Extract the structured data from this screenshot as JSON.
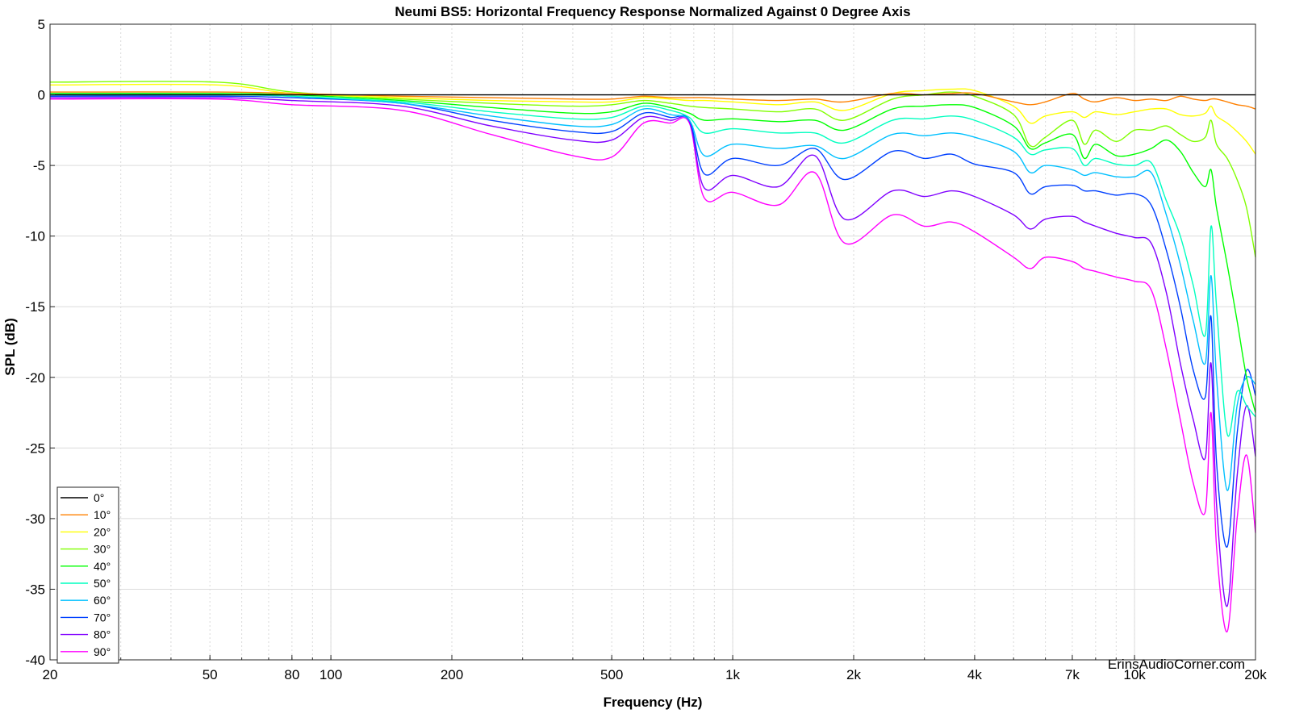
{
  "chart_data": {
    "type": "line",
    "title": "Neumi BS5: Horizontal Frequency Response Normalized Against 0 Degree Axis",
    "xlabel": "Frequency (Hz)",
    "ylabel": "SPL (dB)",
    "xscale": "log",
    "xlim": [
      20,
      20000
    ],
    "ylim": [
      -40,
      5
    ],
    "grid": true,
    "legend_position": "bottom-left",
    "watermark": "ErinsAudioCorner.com",
    "xticks": [
      {
        "value": 20,
        "label": "20"
      },
      {
        "value": 50,
        "label": "50"
      },
      {
        "value": 80,
        "label": "80"
      },
      {
        "value": 100,
        "label": "100"
      },
      {
        "value": 200,
        "label": "200"
      },
      {
        "value": 500,
        "label": "500"
      },
      {
        "value": 1000,
        "label": "1k"
      },
      {
        "value": 2000,
        "label": "2k"
      },
      {
        "value": 4000,
        "label": "4k"
      },
      {
        "value": 7000,
        "label": "7k"
      },
      {
        "value": 10000,
        "label": "10k"
      },
      {
        "value": 20000,
        "label": "20k"
      }
    ],
    "yticks": [
      5,
      0,
      -5,
      -10,
      -15,
      -20,
      -25,
      -30,
      -35,
      -40
    ],
    "x": [
      20,
      52,
      80,
      150,
      250,
      400,
      500,
      600,
      700,
      780,
      850,
      1000,
      1300,
      1600,
      1900,
      2500,
      3000,
      3500,
      4000,
      5000,
      5500,
      6000,
      7000,
      7500,
      8000,
      9000,
      10000,
      11000,
      12000,
      13000,
      14000,
      15000,
      15500,
      16000,
      17000,
      18000,
      19000,
      20000
    ],
    "series": [
      {
        "name": "0°",
        "color": "#000000",
        "values": [
          0,
          0,
          0,
          0,
          0,
          0,
          0,
          0,
          0,
          0,
          0,
          0,
          0,
          0,
          0,
          0,
          0,
          0,
          0,
          0,
          0,
          0,
          0,
          0,
          0,
          0,
          0,
          0,
          0,
          0,
          0,
          0,
          0,
          0,
          0,
          0,
          0,
          0
        ]
      },
      {
        "name": "10°",
        "color": "#ff8000",
        "values": [
          0.2,
          0.2,
          0.1,
          -0.1,
          -0.2,
          -0.3,
          -0.3,
          -0.1,
          -0.2,
          -0.2,
          -0.2,
          -0.3,
          -0.4,
          -0.3,
          -0.5,
          0.1,
          0.0,
          0.1,
          0.1,
          -0.5,
          -0.7,
          -0.5,
          0.1,
          -0.3,
          -0.5,
          -0.2,
          -0.4,
          -0.3,
          -0.4,
          -0.1,
          -0.3,
          -0.4,
          -0.3,
          -0.3,
          -0.5,
          -0.7,
          -0.8,
          -1.0
        ]
      },
      {
        "name": "20°",
        "color": "#ffff00",
        "values": [
          0.7,
          0.7,
          0.1,
          -0.2,
          -0.4,
          -0.5,
          -0.5,
          -0.2,
          -0.3,
          -0.4,
          -0.4,
          -0.5,
          -0.7,
          -0.5,
          -1.1,
          0.1,
          0.3,
          0.4,
          0.3,
          -0.8,
          -2.0,
          -1.5,
          -1.2,
          -1.6,
          -1.2,
          -1.4,
          -1.2,
          -1.0,
          -1.0,
          -1.4,
          -1.5,
          -1.3,
          -0.8,
          -1.5,
          -2.0,
          -2.6,
          -3.3,
          -4.2
        ]
      },
      {
        "name": "30°",
        "color": "#80ff00",
        "values": [
          0.9,
          0.9,
          0.2,
          -0.3,
          -0.6,
          -0.8,
          -0.7,
          -0.4,
          -0.6,
          -0.8,
          -0.9,
          -1.0,
          -1.2,
          -1.0,
          -1.8,
          -0.3,
          0.0,
          0.2,
          -0.1,
          -1.4,
          -3.6,
          -3.0,
          -1.8,
          -3.5,
          -2.5,
          -3.3,
          -2.5,
          -2.5,
          -2.2,
          -2.8,
          -3.3,
          -3.0,
          -1.8,
          -3.5,
          -4.5,
          -6.0,
          -8.0,
          -11.5
        ]
      },
      {
        "name": "40°",
        "color": "#00ff00",
        "values": [
          0.1,
          0.1,
          0.0,
          -0.4,
          -0.9,
          -1.3,
          -1.2,
          -0.6,
          -0.9,
          -1.3,
          -1.8,
          -1.7,
          -1.9,
          -1.8,
          -2.5,
          -1.0,
          -0.8,
          -0.7,
          -0.9,
          -2.2,
          -3.8,
          -3.4,
          -2.8,
          -4.5,
          -3.5,
          -4.3,
          -4.2,
          -3.8,
          -3.2,
          -4.0,
          -5.5,
          -6.5,
          -5.3,
          -8.0,
          -12.0,
          -16.0,
          -20.0,
          -22.5
        ]
      },
      {
        "name": "50°",
        "color": "#00ffc0",
        "values": [
          0.0,
          0.0,
          -0.1,
          -0.5,
          -1.2,
          -1.7,
          -1.6,
          -0.8,
          -1.1,
          -1.6,
          -2.7,
          -2.4,
          -2.7,
          -2.7,
          -3.4,
          -1.8,
          -1.7,
          -1.5,
          -1.8,
          -3.0,
          -4.2,
          -3.9,
          -3.8,
          -5.0,
          -4.5,
          -4.9,
          -5.0,
          -4.8,
          -7.5,
          -10.0,
          -13.5,
          -17.0,
          -9.3,
          -15.0,
          -24.0,
          -21.0,
          -22.0,
          -22.8
        ]
      },
      {
        "name": "60°",
        "color": "#00c0ff",
        "values": [
          0.0,
          0.0,
          -0.1,
          -0.6,
          -1.5,
          -2.2,
          -2.1,
          -1.0,
          -1.4,
          -1.8,
          -4.3,
          -3.5,
          -3.8,
          -3.6,
          -4.5,
          -2.8,
          -2.9,
          -2.7,
          -3.0,
          -4.0,
          -5.5,
          -5.0,
          -5.3,
          -5.7,
          -5.5,
          -5.8,
          -5.8,
          -5.5,
          -8.5,
          -12.0,
          -16.0,
          -19.0,
          -12.8,
          -20.0,
          -28.0,
          -22.0,
          -20.0,
          -20.5
        ]
      },
      {
        "name": "70°",
        "color": "#0040ff",
        "values": [
          -0.1,
          -0.1,
          -0.2,
          -0.6,
          -1.8,
          -2.6,
          -2.6,
          -1.3,
          -1.6,
          -1.8,
          -5.6,
          -4.5,
          -5.0,
          -3.8,
          -6.0,
          -4.0,
          -4.5,
          -4.2,
          -4.9,
          -5.5,
          -7.0,
          -6.5,
          -6.4,
          -6.8,
          -6.8,
          -7.1,
          -7.0,
          -7.8,
          -11.0,
          -15.0,
          -19.5,
          -21.4,
          -15.7,
          -26.0,
          -32.0,
          -24.0,
          -19.5,
          -21.3
        ]
      },
      {
        "name": "80°",
        "color": "#8000ff",
        "values": [
          -0.2,
          -0.2,
          -0.4,
          -0.8,
          -2.2,
          -3.2,
          -3.2,
          -1.6,
          -1.8,
          -1.9,
          -6.6,
          -5.7,
          -6.5,
          -4.3,
          -8.8,
          -6.8,
          -7.2,
          -6.8,
          -7.2,
          -8.5,
          -9.5,
          -8.8,
          -8.6,
          -9.0,
          -9.3,
          -9.8,
          -10.1,
          -10.5,
          -14.0,
          -19.0,
          -23.0,
          -25.7,
          -19.0,
          -29.0,
          -36.2,
          -27.0,
          -22.0,
          -25.6
        ]
      },
      {
        "name": "90°",
        "color": "#ff00ff",
        "values": [
          -0.3,
          -0.3,
          -0.7,
          -1.1,
          -2.8,
          -4.3,
          -4.4,
          -2.0,
          -2.0,
          -2.0,
          -7.3,
          -6.9,
          -7.8,
          -5.5,
          -10.5,
          -8.5,
          -9.3,
          -9.0,
          -9.7,
          -11.5,
          -12.3,
          -11.5,
          -11.8,
          -12.3,
          -12.5,
          -12.9,
          -13.2,
          -13.8,
          -18.0,
          -23.0,
          -27.5,
          -29.5,
          -22.5,
          -32.0,
          -38.0,
          -30.0,
          -25.5,
          -31.0
        ]
      }
    ]
  }
}
